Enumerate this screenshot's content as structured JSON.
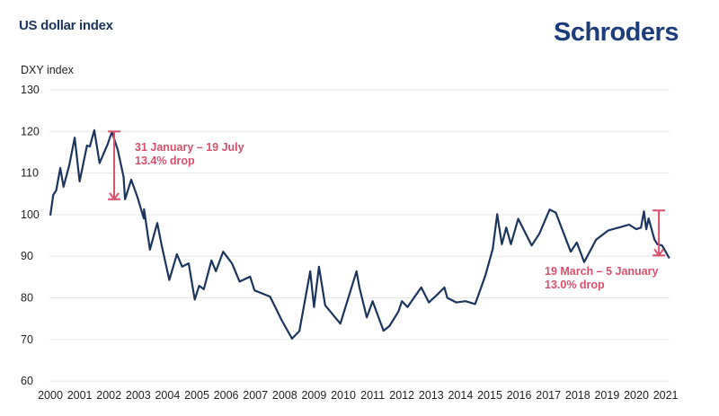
{
  "header": {
    "title": "US dollar index",
    "logo": "Schroders"
  },
  "colors": {
    "line": "#1c355e",
    "annotation": "#d9506b",
    "grid": "#e6e6e6"
  },
  "chart_data": {
    "type": "line",
    "title": "US dollar index",
    "ylabel": "DXY index",
    "xlabel": "",
    "ylim": [
      60,
      130
    ],
    "xlim": [
      2000,
      2021.15
    ],
    "yticks": [
      60,
      70,
      80,
      90,
      100,
      110,
      120,
      130
    ],
    "xticks": [
      2000,
      2001,
      2002,
      2003,
      2004,
      2005,
      2006,
      2007,
      2008,
      2009,
      2010,
      2011,
      2012,
      2013,
      2014,
      2015,
      2016,
      2017,
      2018,
      2019,
      2020,
      2021
    ],
    "grid": true,
    "series": [
      {
        "name": "DXY index",
        "points": [
          [
            2000.0,
            99.8
          ],
          [
            2000.1,
            104.8
          ],
          [
            2000.2,
            105.8
          ],
          [
            2000.34,
            111.2
          ],
          [
            2000.45,
            106.7
          ],
          [
            2000.65,
            112
          ],
          [
            2000.83,
            118.5
          ],
          [
            2001.0,
            108
          ],
          [
            2001.25,
            116.6
          ],
          [
            2001.35,
            116.4
          ],
          [
            2001.5,
            120.3
          ],
          [
            2001.68,
            112.4
          ],
          [
            2001.96,
            117
          ],
          [
            2002.1,
            119.9
          ],
          [
            2002.3,
            115.6
          ],
          [
            2002.5,
            109.1
          ],
          [
            2002.55,
            103.7
          ],
          [
            2002.76,
            108.4
          ],
          [
            2002.98,
            104.1
          ],
          [
            2003.19,
            99.1
          ],
          [
            2003.2,
            101.3
          ],
          [
            2003.4,
            91.6
          ],
          [
            2003.65,
            98
          ],
          [
            2003.8,
            92.6
          ],
          [
            2004.06,
            84.3
          ],
          [
            2004.32,
            90.5
          ],
          [
            2004.5,
            87.5
          ],
          [
            2004.72,
            88.3
          ],
          [
            2004.93,
            79.6
          ],
          [
            2005.08,
            82.9
          ],
          [
            2005.24,
            82.1
          ],
          [
            2005.5,
            89
          ],
          [
            2005.65,
            86.4
          ],
          [
            2005.9,
            91.1
          ],
          [
            2006.2,
            88.3
          ],
          [
            2006.46,
            83.9
          ],
          [
            2006.82,
            85.1
          ],
          [
            2006.97,
            81.8
          ],
          [
            2007.5,
            80.3
          ],
          [
            2007.9,
            74.6
          ],
          [
            2008.25,
            70.2
          ],
          [
            2008.5,
            72
          ],
          [
            2008.87,
            86.4
          ],
          [
            2009.0,
            77.8
          ],
          [
            2009.17,
            87.5
          ],
          [
            2009.38,
            78.2
          ],
          [
            2009.9,
            73.8
          ],
          [
            2010.45,
            86.4
          ],
          [
            2010.55,
            82.5
          ],
          [
            2010.8,
            75.3
          ],
          [
            2011.0,
            79.2
          ],
          [
            2011.37,
            72.1
          ],
          [
            2011.57,
            73.2
          ],
          [
            2011.88,
            76.7
          ],
          [
            2012.0,
            79.2
          ],
          [
            2012.19,
            77.8
          ],
          [
            2012.66,
            82.5
          ],
          [
            2012.92,
            78.9
          ],
          [
            2013.24,
            81
          ],
          [
            2013.45,
            82.5
          ],
          [
            2013.55,
            80
          ],
          [
            2013.86,
            78.9
          ],
          [
            2014.17,
            79.2
          ],
          [
            2014.5,
            78.5
          ],
          [
            2014.85,
            85.4
          ],
          [
            2015.1,
            91.8
          ],
          [
            2015.25,
            100.1
          ],
          [
            2015.41,
            92.9
          ],
          [
            2015.56,
            96.9
          ],
          [
            2015.72,
            92.9
          ],
          [
            2015.97,
            99
          ],
          [
            2016.43,
            92.6
          ],
          [
            2016.69,
            95.4
          ],
          [
            2017.04,
            101.2
          ],
          [
            2017.25,
            100.5
          ],
          [
            2017.76,
            91.1
          ],
          [
            2017.97,
            93.3
          ],
          [
            2018.22,
            88.6
          ],
          [
            2018.63,
            94
          ],
          [
            2019.04,
            96.2
          ],
          [
            2019.55,
            97.2
          ],
          [
            2019.75,
            97.6
          ],
          [
            2020.0,
            96.5
          ],
          [
            2020.16,
            96.9
          ],
          [
            2020.26,
            100.8
          ],
          [
            2020.34,
            96.5
          ],
          [
            2020.42,
            99.1
          ],
          [
            2020.62,
            94
          ],
          [
            2020.72,
            92.9
          ],
          [
            2020.88,
            92.6
          ],
          [
            2021.13,
            89.5
          ]
        ]
      }
    ],
    "annotations": [
      {
        "x": 2002.18,
        "from": 120,
        "to": 103.7,
        "line1": "31 January – 19 July",
        "line2": "13.4% drop"
      },
      {
        "x": 2020.77,
        "from": 101,
        "to": 90.2,
        "line1": "19 March – 5 January",
        "line2": "13.0% drop"
      }
    ]
  }
}
